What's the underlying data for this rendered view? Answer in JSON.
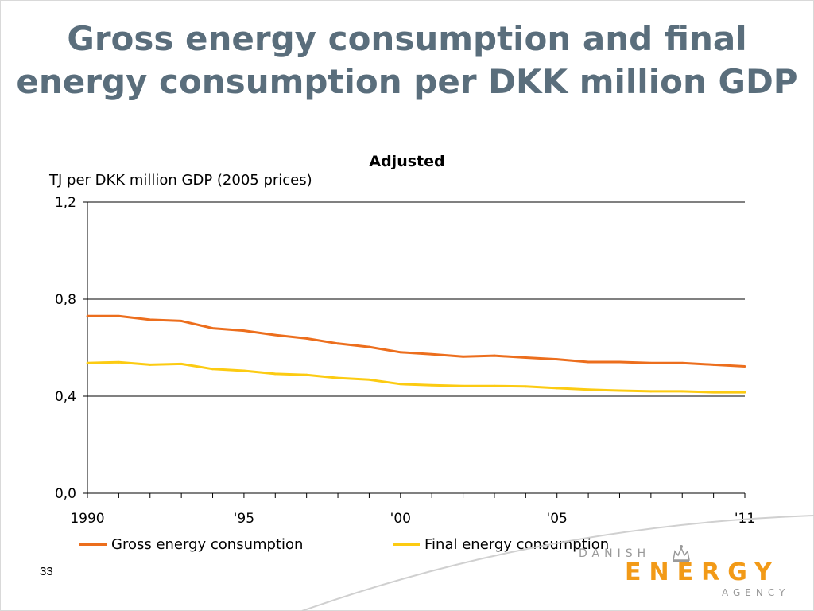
{
  "slide": {
    "title": "Gross energy consumption and final energy consumption per DKK million GDP",
    "page_number": "33"
  },
  "logo": {
    "line1": "DANISH",
    "line2": "ENERGY",
    "line3": "AGENCY"
  },
  "colors": {
    "title": "#5a6e7c",
    "gross": "#ec6e1d",
    "final": "#fccb12",
    "logo_orange": "#f29a17"
  },
  "chart_data": {
    "type": "line",
    "title": "Adjusted",
    "ylabel": "TJ per DKK million GDP (2005 prices)",
    "xlabel": "",
    "x": [
      1990,
      1991,
      1992,
      1993,
      1994,
      1995,
      1996,
      1997,
      1998,
      1999,
      2000,
      2001,
      2002,
      2003,
      2004,
      2005,
      2006,
      2007,
      2008,
      2009,
      2010,
      2011
    ],
    "x_tick_labels": [
      {
        "x": 1990,
        "label": "1990"
      },
      {
        "x": 1995,
        "label": "'95"
      },
      {
        "x": 2000,
        "label": "'00"
      },
      {
        "x": 2005,
        "label": "'05"
      },
      {
        "x": 2011,
        "label": "'11"
      }
    ],
    "y_ticks": [
      {
        "value": 0.0,
        "label": "0,0"
      },
      {
        "value": 0.4,
        "label": "0,4"
      },
      {
        "value": 0.8,
        "label": "0,8"
      },
      {
        "value": 1.2,
        "label": "1,2"
      }
    ],
    "ylim": [
      0,
      1.2
    ],
    "xlim": [
      1990,
      2011
    ],
    "grid": true,
    "legend_position": "bottom",
    "series": [
      {
        "name": "Gross energy consumption",
        "color": "#ec6e1d",
        "values": [
          0.73,
          0.73,
          0.715,
          0.71,
          0.68,
          0.67,
          0.652,
          0.638,
          0.617,
          0.603,
          0.581,
          0.573,
          0.563,
          0.567,
          0.559,
          0.552,
          0.541,
          0.541,
          0.537,
          0.537,
          0.53,
          0.523
        ]
      },
      {
        "name": "Final energy consumption",
        "color": "#fccb12",
        "values": [
          0.537,
          0.54,
          0.53,
          0.533,
          0.512,
          0.505,
          0.492,
          0.488,
          0.475,
          0.468,
          0.45,
          0.445,
          0.442,
          0.442,
          0.44,
          0.433,
          0.427,
          0.423,
          0.42,
          0.42,
          0.416,
          0.416
        ]
      }
    ]
  }
}
